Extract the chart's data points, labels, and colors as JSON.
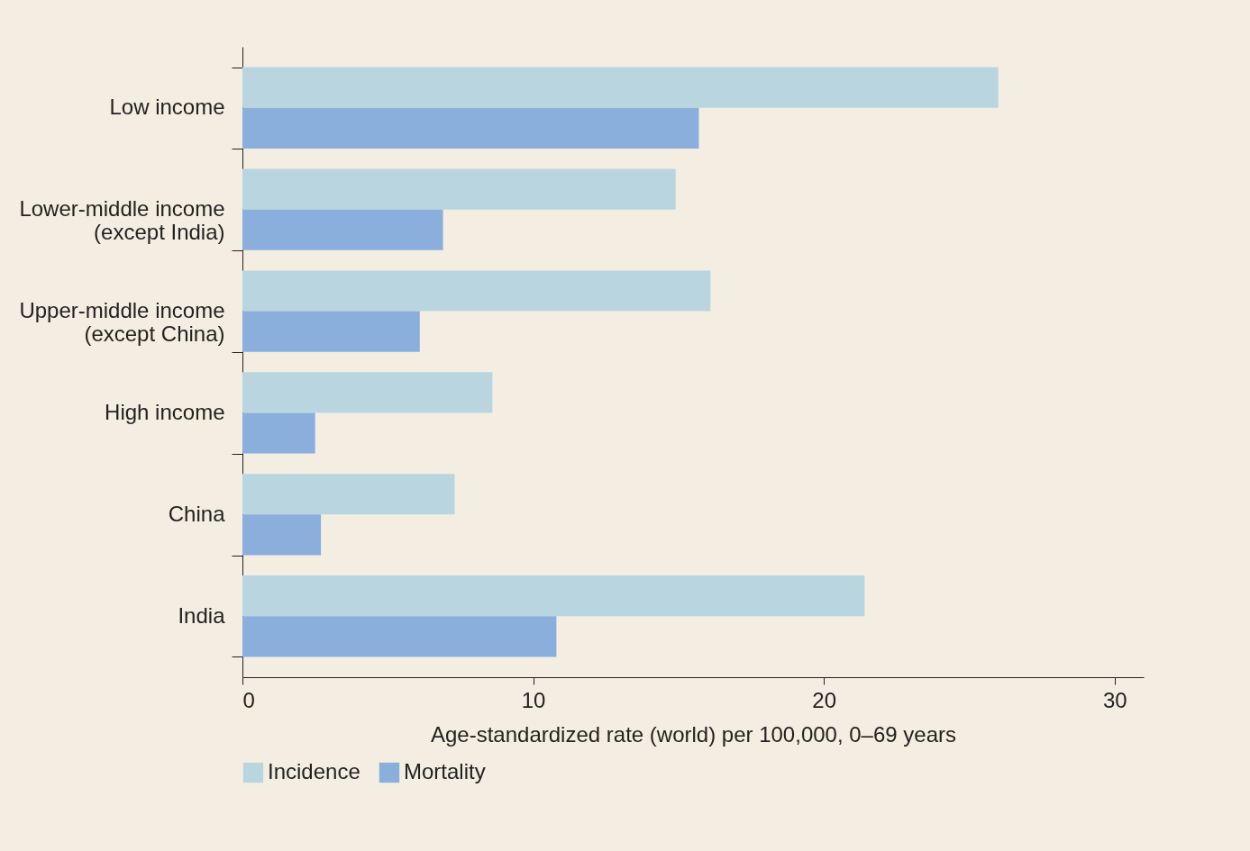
{
  "chart_data": {
    "type": "bar",
    "orientation": "horizontal",
    "xlabel": "Age-standardized rate (world) per 100,000, 0–69 years",
    "categories": [
      "Low income",
      "Lower-middle income (except India)",
      "Upper-middle income (except China)",
      "High income",
      "China",
      "India"
    ],
    "series": [
      {
        "name": "Incidence",
        "color": "#b9d6e0",
        "values": [
          26.0,
          14.9,
          16.1,
          8.6,
          7.3,
          21.4
        ]
      },
      {
        "name": "Mortality",
        "color": "#8aafdc",
        "values": [
          15.7,
          6.9,
          6.1,
          2.5,
          2.7,
          10.8
        ]
      }
    ],
    "xlim": [
      0,
      31
    ],
    "xticks": [
      0,
      10,
      20,
      30
    ],
    "grid": false,
    "legend": "bottom"
  }
}
